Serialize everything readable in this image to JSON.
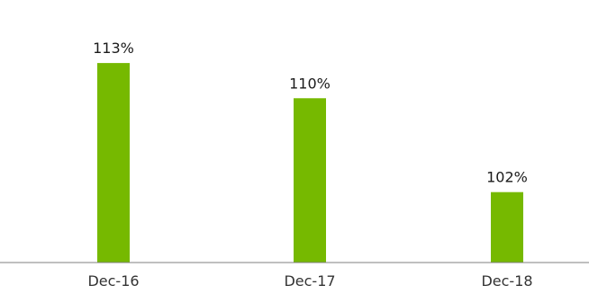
{
  "chart_data": {
    "type": "bar",
    "title": "",
    "xlabel": "",
    "ylabel": "",
    "categories": [
      "Dec-16",
      "Dec-17",
      "Dec-18"
    ],
    "values": [
      113,
      110,
      102
    ],
    "value_labels": [
      "113%",
      "110%",
      "102%"
    ],
    "ylim": [
      96,
      115
    ],
    "grid": false,
    "legend": "none",
    "colors": {
      "bar": "#76b900",
      "axis": "#7f7f7f"
    }
  }
}
